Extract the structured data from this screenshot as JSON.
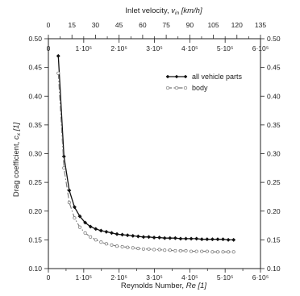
{
  "chart_data": {
    "type": "line",
    "top_axis": {
      "label_prefix": "Inlet velocity, ",
      "label_symbol": "v",
      "label_subscript": "in",
      "label_unit": " [km/h]",
      "ticks": [
        0,
        15,
        30,
        45,
        60,
        75,
        90,
        105,
        120,
        135
      ],
      "range": [
        0,
        135
      ]
    },
    "x_axis": {
      "label_prefix": "Reynolds Number, ",
      "label_symbol": "Re",
      "label_unit": " [1]",
      "range": [
        0,
        600000
      ],
      "ticks": [
        0,
        100000,
        200000,
        300000,
        400000,
        500000,
        600000
      ],
      "tick_labels": [
        "0",
        "1·10⁵",
        "2·10⁵",
        "3·10⁵",
        "4·10⁵",
        "5·10⁵",
        "6·10⁵"
      ]
    },
    "y_axis": {
      "label_prefix": "Drag coefficient, ",
      "label_symbol": "c",
      "label_subscript": "x",
      "label_unit": " [1]",
      "range": [
        0.1,
        0.5
      ],
      "ticks": [
        0.1,
        0.15,
        0.2,
        0.25,
        0.3,
        0.35,
        0.4,
        0.45,
        0.5
      ],
      "tick_labels": [
        "0.10",
        "0.15",
        "0.20",
        "0.25",
        "0.30",
        "0.35",
        "0.40",
        "0.45",
        "0.50"
      ]
    },
    "legend_position": "top-right",
    "grid": false,
    "series": [
      {
        "name": "all vehicle parts",
        "color": "#111111",
        "style": "solid",
        "marker": "filled-diamond",
        "x": [
          28000,
          44000,
          59000,
          74000,
          89000,
          104000,
          119000,
          134000,
          149000,
          164000,
          179000,
          194000,
          209000,
          224000,
          239000,
          254000,
          269000,
          284000,
          299000,
          314000,
          329000,
          344000,
          359000,
          374000,
          389000,
          404000,
          419000,
          434000,
          449000,
          464000,
          479000,
          494000,
          509000,
          524000
        ],
        "y": [
          0.47,
          0.295,
          0.236,
          0.207,
          0.191,
          0.18,
          0.173,
          0.169,
          0.166,
          0.164,
          0.162,
          0.16,
          0.159,
          0.158,
          0.157,
          0.156,
          0.155,
          0.155,
          0.154,
          0.154,
          0.153,
          0.153,
          0.153,
          0.152,
          0.152,
          0.152,
          0.152,
          0.151,
          0.151,
          0.151,
          0.151,
          0.151,
          0.15,
          0.15
        ]
      },
      {
        "name": "body",
        "color": "#777777",
        "style": "dash-dot",
        "marker": "open-circle",
        "x": [
          28000,
          44000,
          59000,
          74000,
          89000,
          104000,
          119000,
          134000,
          149000,
          164000,
          179000,
          194000,
          209000,
          224000,
          239000,
          254000,
          269000,
          284000,
          299000,
          314000,
          329000,
          344000,
          359000,
          374000,
          389000,
          404000,
          419000,
          434000,
          449000,
          464000,
          479000,
          494000,
          509000,
          524000
        ],
        "y": [
          0.44,
          0.275,
          0.215,
          0.188,
          0.172,
          0.162,
          0.155,
          0.15,
          0.146,
          0.143,
          0.141,
          0.139,
          0.138,
          0.137,
          0.136,
          0.135,
          0.134,
          0.134,
          0.133,
          0.133,
          0.132,
          0.132,
          0.131,
          0.131,
          0.131,
          0.13,
          0.13,
          0.13,
          0.13,
          0.129,
          0.129,
          0.129,
          0.129,
          0.129
        ]
      }
    ]
  }
}
